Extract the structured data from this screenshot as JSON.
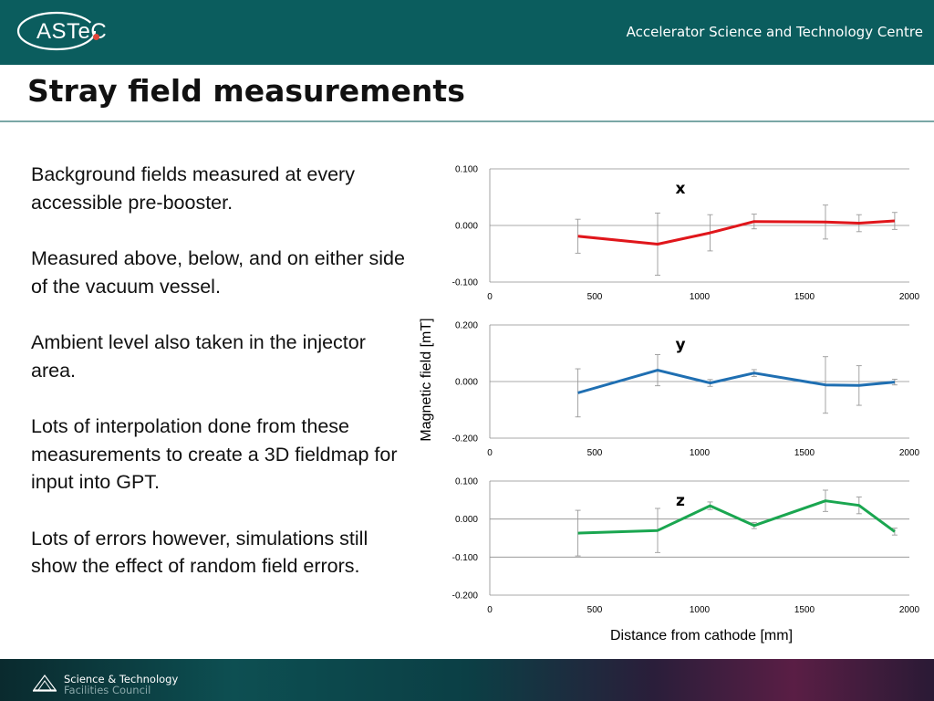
{
  "header": {
    "logo_text": "ASTeC",
    "org_name": "Accelerator Science and Technology Centre"
  },
  "slide": {
    "title": "Stray field measurements",
    "bullets": [
      "Background fields measured at every accessible pre-booster.",
      "Measured above, below, and on either side of the vacuum vessel.",
      "Ambient level also taken in the injector area.",
      "Lots of interpolation done from these measurements to create a 3D fieldmap for input into GPT.",
      "Lots of errors however,  simulations still show the effect of random field errors."
    ]
  },
  "footer": {
    "line1": "Science & Technology",
    "line2": "Facilities Council"
  },
  "chart_data": {
    "type": "line",
    "xlabel": "Distance from cathode [mm]",
    "ylabel": "Magnetic field [mT]",
    "x_ticks": [
      "0",
      "500",
      "1000",
      "1500",
      "2000"
    ],
    "xlim": [
      0,
      2000
    ],
    "grid": true,
    "panels": [
      {
        "label": "x",
        "color": "#e0161b",
        "ylim": [
          -0.1,
          0.1
        ],
        "y_ticks": [
          "0.100",
          "0.000",
          "-0.100"
        ],
        "x": [
          420,
          800,
          1050,
          1260,
          1600,
          1760,
          1930
        ],
        "y": [
          -0.019,
          -0.033,
          -0.013,
          0.007,
          0.006,
          0.004,
          0.008
        ],
        "err": [
          0.03,
          0.055,
          0.032,
          0.013,
          0.03,
          0.015,
          0.015
        ]
      },
      {
        "label": "y",
        "color": "#1f6fb2",
        "ylim": [
          -0.2,
          0.2
        ],
        "y_ticks": [
          "0.200",
          "0.000",
          "-0.200"
        ],
        "x": [
          420,
          800,
          1050,
          1260,
          1600,
          1760,
          1930
        ],
        "y": [
          -0.04,
          0.04,
          -0.005,
          0.03,
          -0.012,
          -0.014,
          -0.002
        ],
        "err": [
          0.085,
          0.055,
          0.012,
          0.012,
          0.1,
          0.07,
          0.01
        ]
      },
      {
        "label": "z",
        "color": "#1aa650",
        "ylim": [
          -0.2,
          0.1
        ],
        "y_ticks": [
          "0.100",
          "0.000",
          "-0.100",
          "-0.200"
        ],
        "x": [
          420,
          800,
          1050,
          1260,
          1600,
          1760,
          1930
        ],
        "y": [
          -0.037,
          -0.03,
          0.035,
          -0.017,
          0.048,
          0.036,
          -0.033
        ],
        "err": [
          0.06,
          0.058,
          0.01,
          0.008,
          0.028,
          0.022,
          0.009
        ]
      }
    ]
  }
}
